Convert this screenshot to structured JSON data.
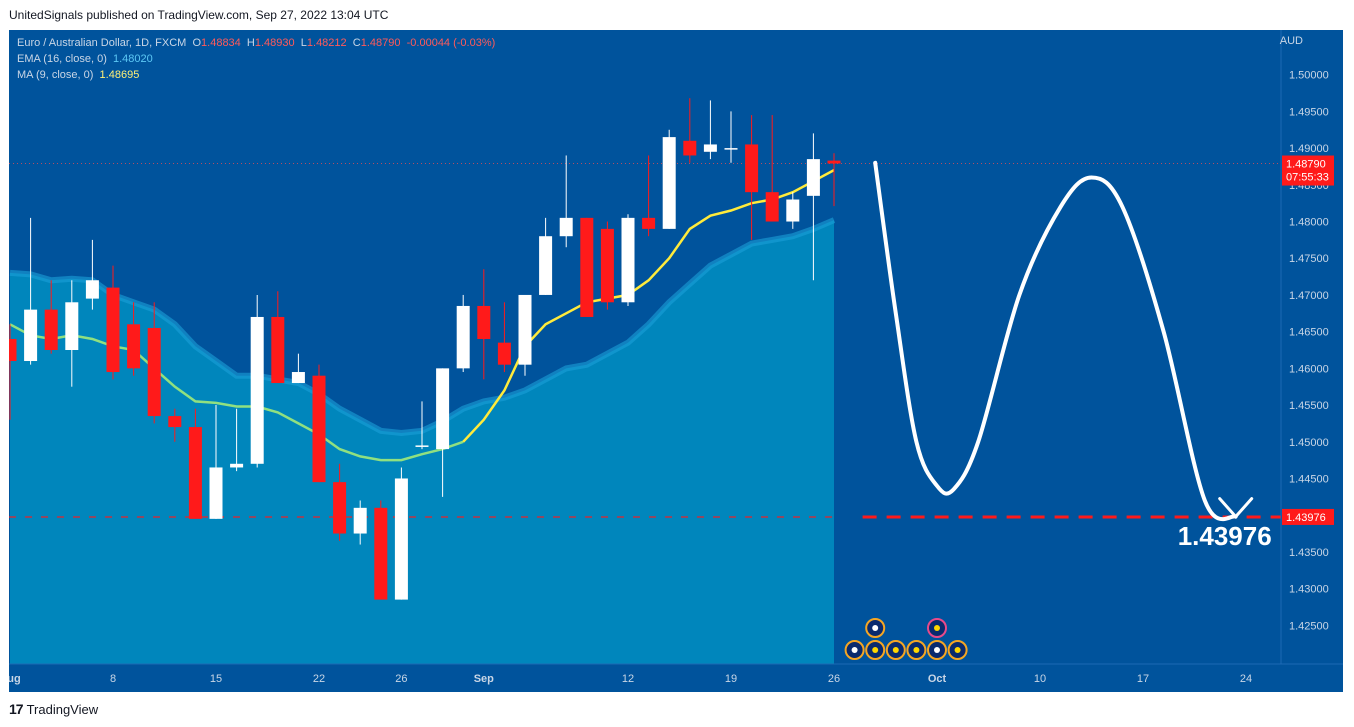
{
  "attribution": "UnitedSignals published on TradingView.com, Sep 27, 2022 13:04 UTC",
  "footer": {
    "logo_glyph": "17",
    "brand": "TradingView"
  },
  "legend": {
    "symbol": "Euro / Australian Dollar, 1D, FXCM",
    "o_label": "O",
    "o_val": "1.48834",
    "h_label": "H",
    "h_val": "1.48930",
    "l_label": "L",
    "l_val": "1.48212",
    "c_label": "C",
    "c_val": "1.48790",
    "change": "-0.00044 (-0.03%)",
    "ema_label": "EMA (16, close, 0)",
    "ema_val": "1.48020",
    "ma_label": "MA (9, close, 0)",
    "ma_val": "1.48695"
  },
  "currency": "AUD",
  "price_label": {
    "value": "1.48790",
    "countdown": "07:55:33"
  },
  "target_label": "1.43976",
  "target_big_text": "1.43976",
  "colors": {
    "background": "#00539c",
    "up": "#ffffff",
    "down": "#ff1a1a",
    "ema_fill": "#0086bc",
    "ma_line": "#ffeb3b",
    "ma_line_old": "#90e080",
    "target": "#ff1a1a",
    "projection": "#ffffff"
  },
  "chart_data": {
    "type": "candlestick",
    "symbol": "EURAUD",
    "timeframe": "1D",
    "ylim": [
      1.42,
      1.505
    ],
    "y_ticks": [
      "1.50000",
      "1.49500",
      "1.49000",
      "1.48500",
      "1.48000",
      "1.47500",
      "1.47000",
      "1.46500",
      "1.46000",
      "1.45500",
      "1.45000",
      "1.44500",
      "1.44000",
      "1.43500",
      "1.43000",
      "1.42500"
    ],
    "x_tick_labels": [
      {
        "day": 0,
        "label": "Aug"
      },
      {
        "day": 5,
        "label": "8"
      },
      {
        "day": 10,
        "label": "15"
      },
      {
        "day": 15,
        "label": "22"
      },
      {
        "day": 19,
        "label": "26"
      },
      {
        "day": 23,
        "label": "Sep"
      },
      {
        "day": 30,
        "label": "12"
      },
      {
        "day": 35,
        "label": "19"
      },
      {
        "day": 40,
        "label": "26"
      },
      {
        "day": 45,
        "label": "Oct"
      },
      {
        "day": 50,
        "label": "10"
      },
      {
        "day": 55,
        "label": "17"
      },
      {
        "day": 60,
        "label": "24"
      }
    ],
    "candles": [
      {
        "o": 1.464,
        "h": 1.466,
        "l": 1.453,
        "c": 1.461
      },
      {
        "o": 1.461,
        "h": 1.4805,
        "l": 1.4605,
        "c": 1.468
      },
      {
        "o": 1.468,
        "h": 1.472,
        "l": 1.462,
        "c": 1.4625
      },
      {
        "o": 1.4625,
        "h": 1.472,
        "l": 1.4575,
        "c": 1.469
      },
      {
        "o": 1.4695,
        "h": 1.4775,
        "l": 1.468,
        "c": 1.472
      },
      {
        "o": 1.471,
        "h": 1.474,
        "l": 1.4585,
        "c": 1.4595
      },
      {
        "o": 1.466,
        "h": 1.469,
        "l": 1.459,
        "c": 1.46
      },
      {
        "o": 1.4655,
        "h": 1.469,
        "l": 1.4525,
        "c": 1.4535
      },
      {
        "o": 1.4535,
        "h": 1.4545,
        "l": 1.45,
        "c": 1.452
      },
      {
        "o": 1.452,
        "h": 1.4545,
        "l": 1.4395,
        "c": 1.4395
      },
      {
        "o": 1.4395,
        "h": 1.455,
        "l": 1.4395,
        "c": 1.4465
      },
      {
        "o": 1.4465,
        "h": 1.4545,
        "l": 1.446,
        "c": 1.447
      },
      {
        "o": 1.447,
        "h": 1.47,
        "l": 1.4465,
        "c": 1.467
      },
      {
        "o": 1.467,
        "h": 1.4705,
        "l": 1.458,
        "c": 1.458
      },
      {
        "o": 1.458,
        "h": 1.462,
        "l": 1.458,
        "c": 1.4595
      },
      {
        "o": 1.459,
        "h": 1.4605,
        "l": 1.4445,
        "c": 1.4445
      },
      {
        "o": 1.4445,
        "h": 1.447,
        "l": 1.4365,
        "c": 1.4375
      },
      {
        "o": 1.4375,
        "h": 1.442,
        "l": 1.436,
        "c": 1.441
      },
      {
        "o": 1.441,
        "h": 1.442,
        "l": 1.4285,
        "c": 1.4285
      },
      {
        "o": 1.4285,
        "h": 1.4465,
        "l": 1.4285,
        "c": 1.445
      },
      {
        "o": 1.4495,
        "h": 1.4555,
        "l": 1.449,
        "c": 1.4495
      },
      {
        "o": 1.449,
        "h": 1.46,
        "l": 1.4425,
        "c": 1.46
      },
      {
        "o": 1.46,
        "h": 1.47,
        "l": 1.4595,
        "c": 1.4685
      },
      {
        "o": 1.4685,
        "h": 1.4735,
        "l": 1.4585,
        "c": 1.464
      },
      {
        "o": 1.4635,
        "h": 1.469,
        "l": 1.4595,
        "c": 1.4605
      },
      {
        "o": 1.4605,
        "h": 1.47,
        "l": 1.459,
        "c": 1.47
      },
      {
        "o": 1.47,
        "h": 1.4805,
        "l": 1.47,
        "c": 1.478
      },
      {
        "o": 1.478,
        "h": 1.489,
        "l": 1.4765,
        "c": 1.4805
      },
      {
        "o": 1.4805,
        "h": 1.4805,
        "l": 1.467,
        "c": 1.467
      },
      {
        "o": 1.479,
        "h": 1.48,
        "l": 1.468,
        "c": 1.469
      },
      {
        "o": 1.469,
        "h": 1.481,
        "l": 1.4685,
        "c": 1.4805
      },
      {
        "o": 1.4805,
        "h": 1.489,
        "l": 1.478,
        "c": 1.479
      },
      {
        "o": 1.479,
        "h": 1.4925,
        "l": 1.479,
        "c": 1.4915
      },
      {
        "o": 1.491,
        "h": 1.4968,
        "l": 1.488,
        "c": 1.489
      },
      {
        "o": 1.4895,
        "h": 1.4965,
        "l": 1.4885,
        "c": 1.4905
      },
      {
        "o": 1.49,
        "h": 1.495,
        "l": 1.488,
        "c": 1.49
      },
      {
        "o": 1.4905,
        "h": 1.4945,
        "l": 1.4775,
        "c": 1.484
      },
      {
        "o": 1.484,
        "h": 1.4945,
        "l": 1.48,
        "c": 1.48
      },
      {
        "o": 1.48,
        "h": 1.484,
        "l": 1.479,
        "c": 1.483
      },
      {
        "o": 1.4835,
        "h": 1.492,
        "l": 1.472,
        "c": 1.4885
      },
      {
        "o": 1.4883,
        "h": 1.4893,
        "l": 1.4821,
        "c": 1.4879
      }
    ],
    "ema_16": [
      1.473,
      1.4728,
      1.472,
      1.4722,
      1.472,
      1.47,
      1.469,
      1.468,
      1.466,
      1.463,
      1.461,
      1.459,
      1.459,
      1.4585,
      1.458,
      1.4565,
      1.4545,
      1.453,
      1.4515,
      1.4512,
      1.4515,
      1.4528,
      1.4545,
      1.4555,
      1.456,
      1.457,
      1.4585,
      1.46,
      1.4605,
      1.462,
      1.4635,
      1.466,
      1.469,
      1.4715,
      1.474,
      1.4755,
      1.477,
      1.4775,
      1.478,
      1.479,
      1.4802
    ],
    "ma_9": [
      1.466,
      1.4645,
      1.464,
      1.4645,
      1.464,
      1.463,
      1.4625,
      1.46,
      1.4575,
      1.4555,
      1.4553,
      1.4548,
      1.4548,
      1.454,
      1.4525,
      1.451,
      1.449,
      1.448,
      1.4475,
      1.4475,
      1.4483,
      1.449,
      1.45,
      1.453,
      1.457,
      1.463,
      1.466,
      1.4675,
      1.469,
      1.4695,
      1.47,
      1.472,
      1.475,
      1.479,
      1.4808,
      1.4815,
      1.4825,
      1.483,
      1.484,
      1.4855,
      1.487
    ],
    "target_level": 1.43976,
    "last_close": 1.4879,
    "projection_path": [
      {
        "day": 42.0,
        "price": 1.488
      },
      {
        "day": 43.0,
        "price": 1.4675
      },
      {
        "day": 44.0,
        "price": 1.45
      },
      {
        "day": 45.0,
        "price": 1.444
      },
      {
        "day": 45.8,
        "price": 1.4435
      },
      {
        "day": 47.0,
        "price": 1.45
      },
      {
        "day": 49.0,
        "price": 1.47
      },
      {
        "day": 51.0,
        "price": 1.482
      },
      {
        "day": 52.5,
        "price": 1.486
      },
      {
        "day": 54.0,
        "price": 1.482
      },
      {
        "day": 56.0,
        "price": 1.465
      },
      {
        "day": 58.0,
        "price": 1.442
      },
      {
        "day": 59.5,
        "price": 1.4398
      }
    ],
    "event_markers": [
      {
        "day": 41.0,
        "row": 1,
        "flag": "AU"
      },
      {
        "day": 42.0,
        "row": 1,
        "flag": "EU"
      },
      {
        "day": 43.0,
        "row": 1,
        "flag": "EU"
      },
      {
        "day": 44.0,
        "row": 1,
        "flag": "EU"
      },
      {
        "day": 45.0,
        "row": 1,
        "flag": "AU"
      },
      {
        "day": 46.0,
        "row": 1,
        "flag": "EU"
      },
      {
        "day": 42.0,
        "row": 2,
        "flag": "AU"
      },
      {
        "day": 45.0,
        "row": 2,
        "flag": "EU"
      }
    ]
  }
}
